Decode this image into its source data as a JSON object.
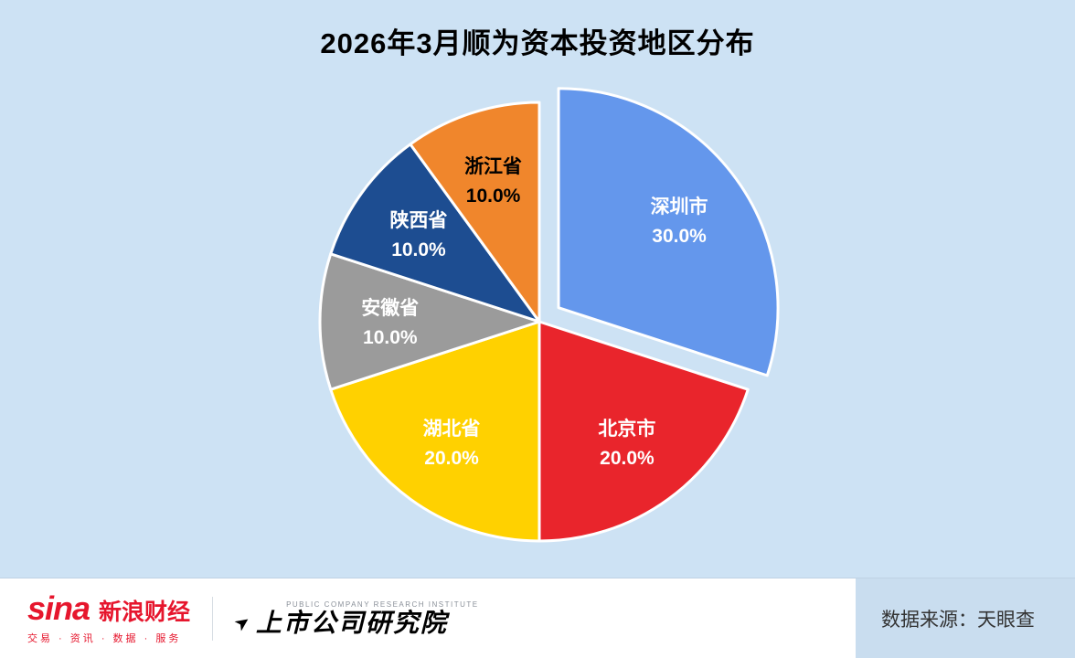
{
  "chart_data": {
    "type": "pie",
    "title": "2026年3月顺为资本投资地区分布",
    "direction": "clockwise",
    "start_angle_deg": 0,
    "labels_inside": true,
    "legend": "none",
    "background": "#cde2f4",
    "series": [
      {
        "label": "深圳市",
        "value": 30.0,
        "pct_label": "30.0%",
        "color": "#6497ec",
        "text_color": "#ffffff",
        "explode": 26
      },
      {
        "label": "北京市",
        "value": 20.0,
        "pct_label": "20.0%",
        "color": "#e9252c",
        "text_color": "#ffffff",
        "explode": 0
      },
      {
        "label": "湖北省",
        "value": 20.0,
        "pct_label": "20.0%",
        "color": "#ffd100",
        "text_color": "#ffffff",
        "explode": 0
      },
      {
        "label": "安徽省",
        "value": 10.0,
        "pct_label": "10.0%",
        "color": "#9b9b9b",
        "text_color": "#ffffff",
        "explode": 0
      },
      {
        "label": "陕西省",
        "value": 10.0,
        "pct_label": "10.0%",
        "color": "#1d4d91",
        "text_color": "#ffffff",
        "explode": 0
      },
      {
        "label": "浙江省",
        "value": 10.0,
        "pct_label": "10.0%",
        "color": "#f0862c",
        "text_color": "#000000",
        "explode": 0
      }
    ]
  },
  "footer": {
    "sina_wordmark": "sina",
    "sina_brand": "新浪财经",
    "sina_tagline": "交易 · 资讯 · 数据 · 服务",
    "institute_subtitle": "PUBLIC COMPANY RESEARCH INSTITUTE",
    "institute_name": "上市公司研究院",
    "arrow_glyph": "➤",
    "source": "数据来源：天眼查"
  }
}
